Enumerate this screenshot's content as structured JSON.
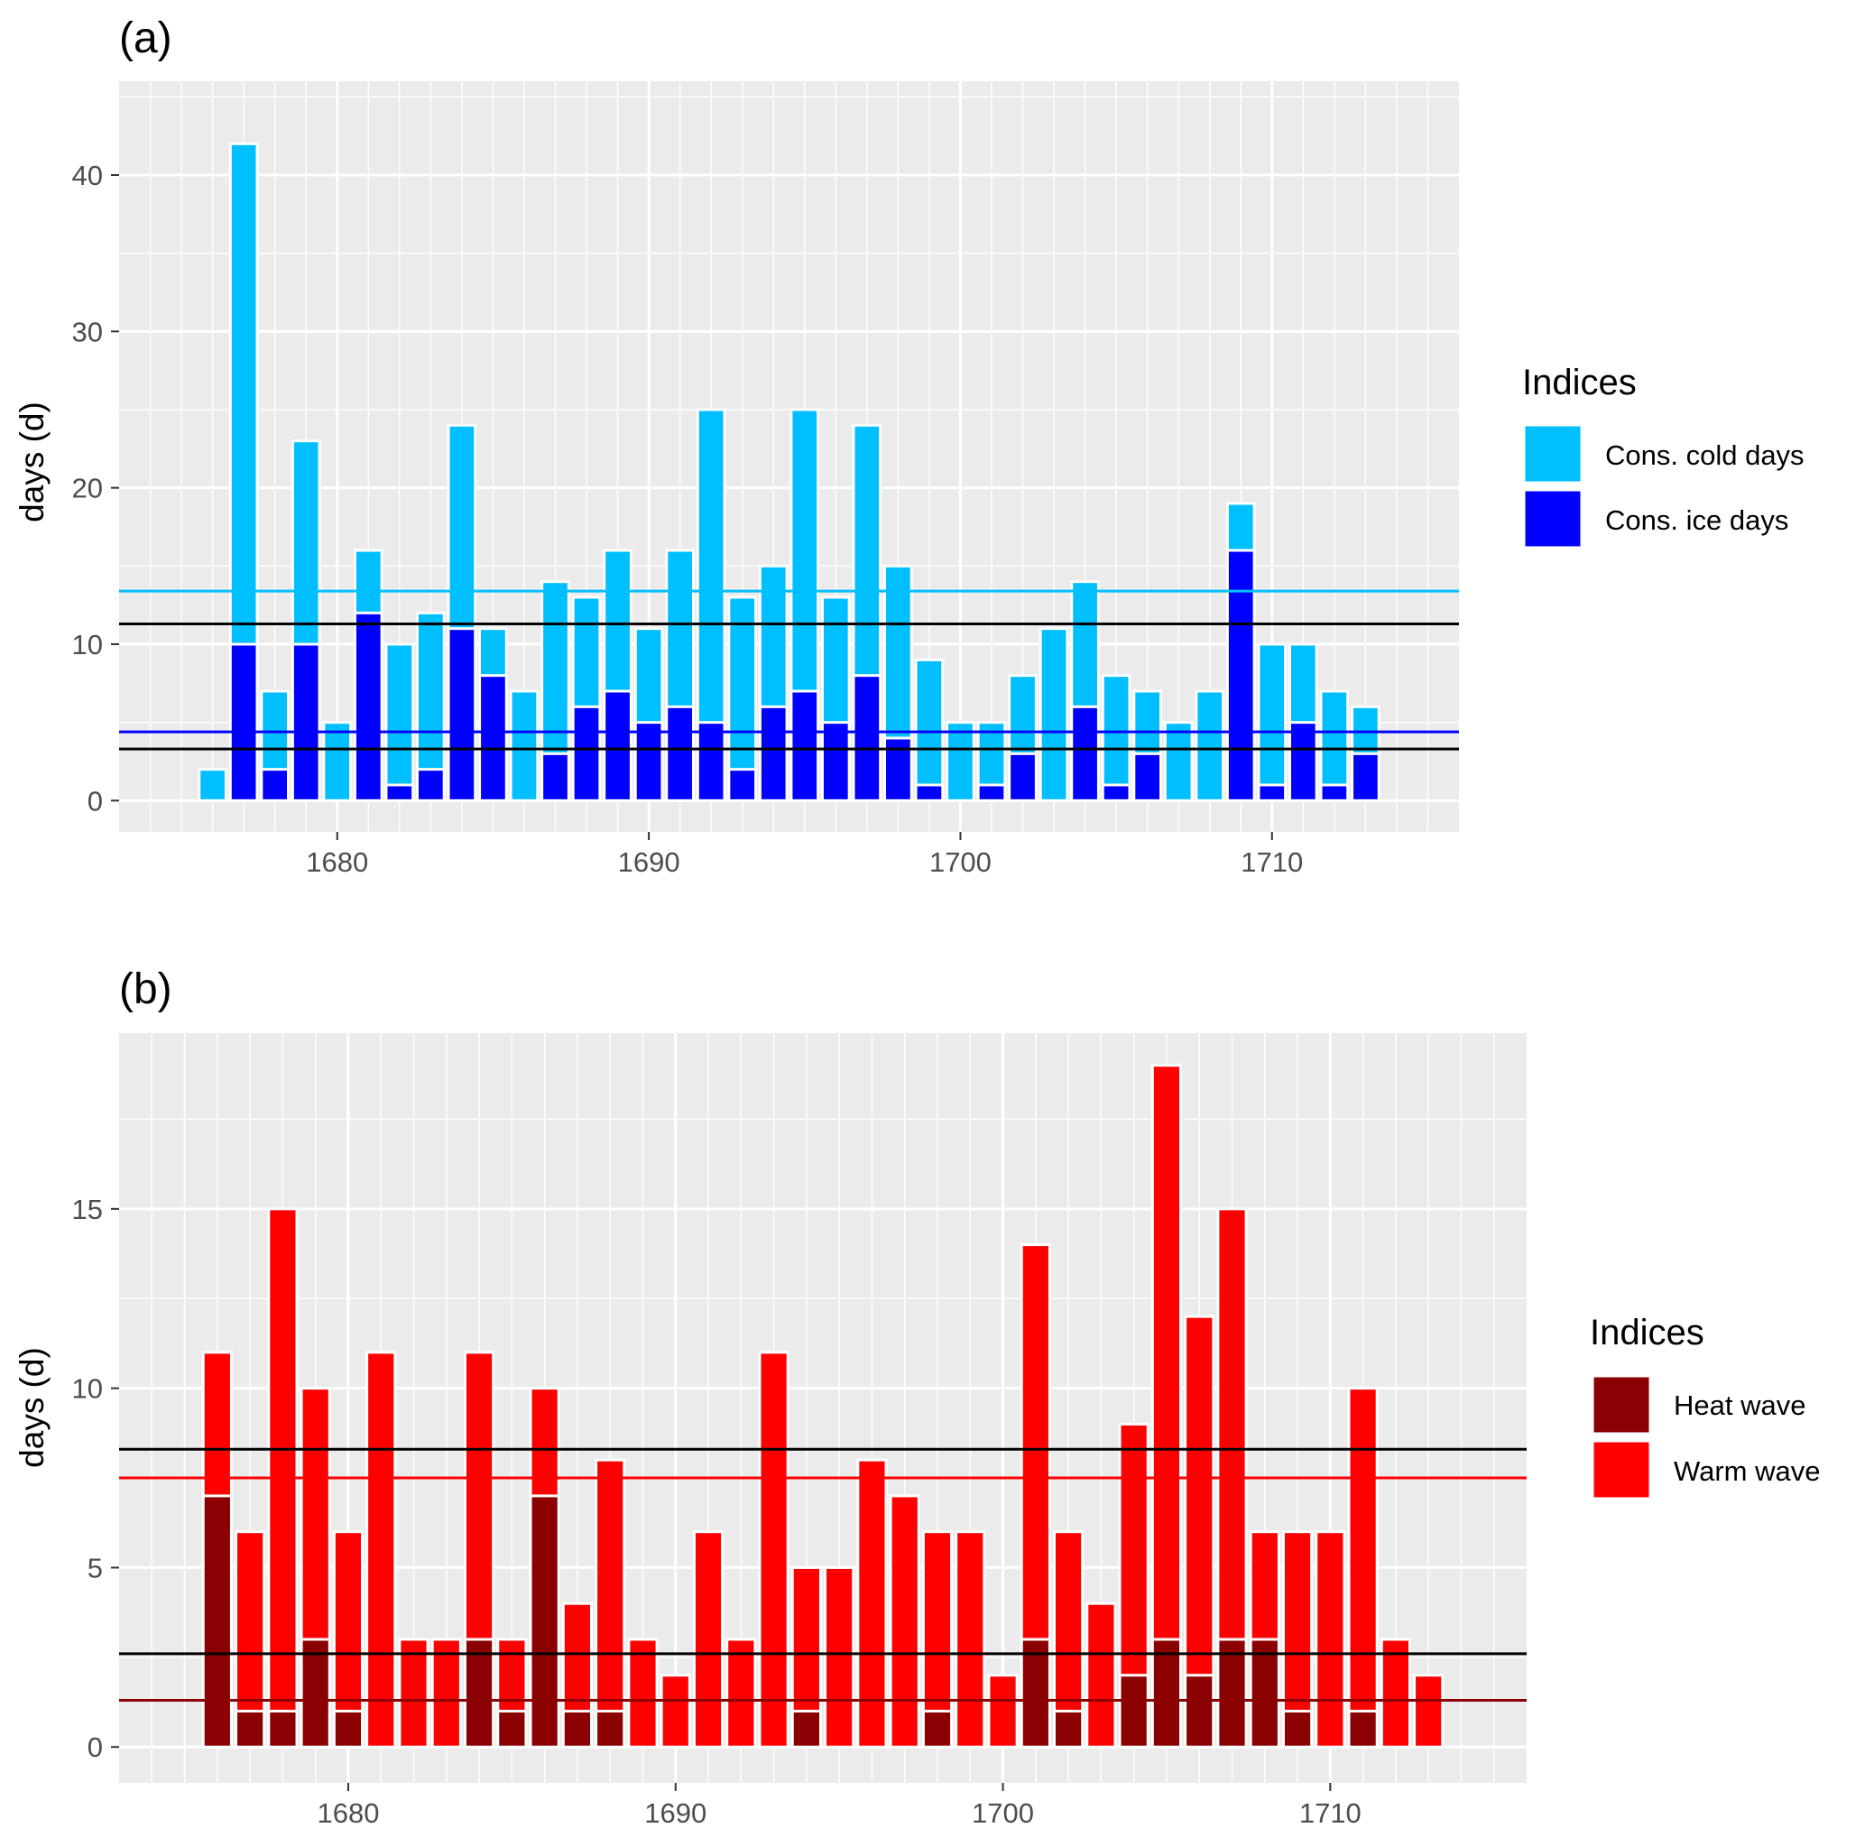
{
  "colors": {
    "panel_bg": "#ebebeb",
    "grid": "#ffffff",
    "bar_outline": "#ffffff",
    "cold_days": "#00bfff",
    "ice_days": "#0000ff",
    "heat_wave": "#8b0000",
    "warm_wave": "#ff0000",
    "ref_black": "#000000",
    "ref_cold_mean": "#00bfff",
    "ref_ice_mean": "#0000ff",
    "ref_warm_mean": "#ff0000",
    "ref_heat_mean": "#8b0000"
  },
  "chart_data": [
    {
      "panel": "(a)",
      "type": "bar",
      "bar_mode": "overlay",
      "xlabel": "",
      "ylabel": "days (d)",
      "xlim": [
        1673,
        1716
      ],
      "ylim": [
        -2,
        46
      ],
      "x_ticks": [
        1680,
        1690,
        1700,
        1710
      ],
      "x_tick_labels": [
        "1680",
        "1690",
        "1700",
        "1710"
      ],
      "y_ticks": [
        0,
        10,
        20,
        30,
        40
      ],
      "y_tick_labels": [
        "0",
        "10",
        "20",
        "30",
        "40"
      ],
      "grid": true,
      "legend": {
        "title": "Indices",
        "position": "right",
        "entries": [
          {
            "label": "Cons. cold days",
            "color": "#00bfff"
          },
          {
            "label": "Cons. ice days",
            "color": "#0000ff"
          }
        ]
      },
      "x": [
        1676,
        1677,
        1678,
        1679,
        1680,
        1681,
        1682,
        1683,
        1684,
        1685,
        1686,
        1687,
        1688,
        1689,
        1690,
        1691,
        1692,
        1693,
        1694,
        1695,
        1696,
        1697,
        1698,
        1699,
        1700,
        1701,
        1702,
        1703,
        1704,
        1705,
        1706,
        1707,
        1708,
        1709,
        1710,
        1711,
        1712,
        1713
      ],
      "series": [
        {
          "name": "Cons. cold days",
          "color": "#00bfff",
          "values": [
            2,
            42,
            7,
            23,
            5,
            16,
            10,
            12,
            24,
            11,
            7,
            14,
            13,
            16,
            11,
            16,
            25,
            13,
            15,
            25,
            13,
            24,
            15,
            9,
            5,
            5,
            8,
            11,
            14,
            8,
            7,
            5,
            7,
            19,
            10,
            10,
            7,
            6
          ]
        },
        {
          "name": "Cons. ice days",
          "color": "#0000ff",
          "values": [
            0,
            10,
            2,
            10,
            0,
            12,
            1,
            2,
            11,
            8,
            0,
            3,
            6,
            7,
            5,
            6,
            5,
            2,
            6,
            7,
            5,
            8,
            4,
            1,
            0,
            1,
            3,
            0,
            6,
            1,
            3,
            0,
            0,
            16,
            1,
            5,
            1,
            3
          ]
        }
      ],
      "reference_lines": [
        {
          "value": 13.4,
          "color": "#00bfff"
        },
        {
          "value": 11.3,
          "color": "#000000"
        },
        {
          "value": 4.4,
          "color": "#0000ff"
        },
        {
          "value": 3.3,
          "color": "#000000"
        }
      ]
    },
    {
      "panel": "(b)",
      "type": "bar",
      "bar_mode": "overlay",
      "xlabel": "",
      "ylabel": "days (d)",
      "xlim": [
        1673,
        1716
      ],
      "ylim": [
        -1,
        19.9
      ],
      "x_ticks": [
        1680,
        1690,
        1700,
        1710
      ],
      "x_tick_labels": [
        "1680",
        "1690",
        "1700",
        "1710"
      ],
      "y_ticks": [
        0,
        5,
        10,
        15
      ],
      "y_tick_labels": [
        "0",
        "5",
        "10",
        "15"
      ],
      "grid": true,
      "legend": {
        "title": "Indices",
        "position": "right",
        "entries": [
          {
            "label": "Heat wave",
            "color": "#8b0000"
          },
          {
            "label": "Warm wave",
            "color": "#ff0000"
          }
        ]
      },
      "x": [
        1676,
        1677,
        1678,
        1679,
        1680,
        1681,
        1682,
        1683,
        1684,
        1685,
        1686,
        1687,
        1688,
        1689,
        1690,
        1691,
        1692,
        1693,
        1694,
        1695,
        1696,
        1697,
        1698,
        1699,
        1700,
        1701,
        1702,
        1703,
        1704,
        1705,
        1706,
        1707,
        1708,
        1709,
        1710,
        1711,
        1712,
        1713
      ],
      "series": [
        {
          "name": "Warm wave",
          "color": "#ff0000",
          "values": [
            11,
            6,
            15,
            10,
            6,
            11,
            3,
            3,
            11,
            3,
            10,
            4,
            8,
            3,
            2,
            6,
            3,
            11,
            5,
            5,
            8,
            7,
            6,
            6,
            2,
            14,
            6,
            4,
            9,
            19,
            12,
            15,
            6,
            6,
            6,
            10,
            3,
            2
          ]
        },
        {
          "name": "Heat wave",
          "color": "#8b0000",
          "values": [
            7,
            1,
            1,
            3,
            1,
            0,
            0,
            0,
            3,
            1,
            7,
            1,
            1,
            0,
            0,
            0,
            0,
            0,
            1,
            0,
            0,
            0,
            1,
            0,
            0,
            3,
            1,
            0,
            2,
            3,
            2,
            3,
            3,
            1,
            0,
            1,
            0,
            0
          ]
        }
      ],
      "reference_lines": [
        {
          "value": 8.3,
          "color": "#000000"
        },
        {
          "value": 7.5,
          "color": "#ff0000"
        },
        {
          "value": 2.6,
          "color": "#000000"
        },
        {
          "value": 1.3,
          "color": "#8b0000"
        }
      ]
    }
  ]
}
